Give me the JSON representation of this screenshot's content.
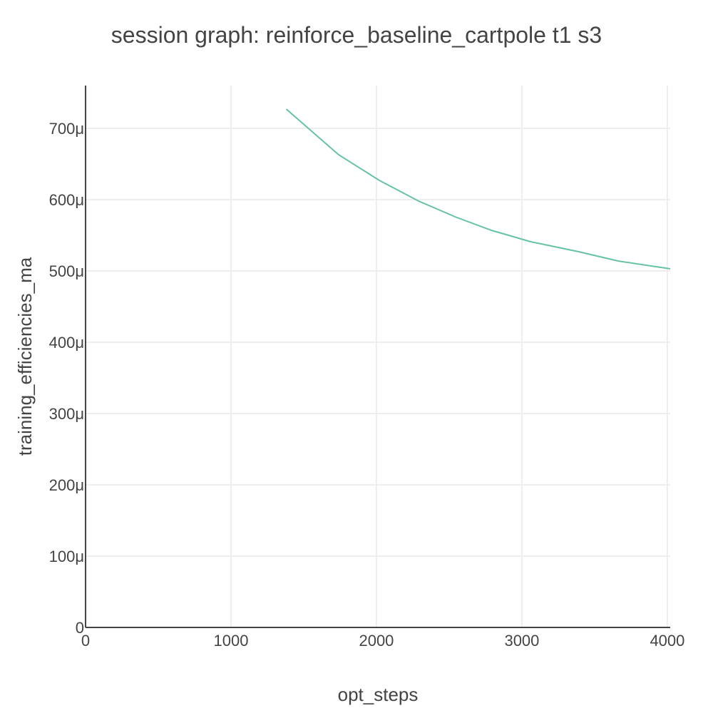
{
  "chart_data": {
    "type": "line",
    "title": "session graph: reinforce_baseline_cartpole t1 s3",
    "xlabel": "opt_steps",
    "ylabel": "training_efficiencies_ma",
    "xlim": [
      0,
      4020
    ],
    "ylim": [
      0,
      0.00076
    ],
    "x_ticks": [
      0,
      1000,
      2000,
      3000,
      4000
    ],
    "x_tick_labels": [
      "0",
      "1000",
      "2000",
      "3000",
      "4000"
    ],
    "y_ticks": [
      0,
      0.0001,
      0.0002,
      0.0003,
      0.0004,
      0.0005,
      0.0006,
      0.0007
    ],
    "y_tick_labels": [
      "0",
      "100μ",
      "200μ",
      "300μ",
      "400μ",
      "500μ",
      "600μ",
      "700μ"
    ],
    "grid": true,
    "legend": "none",
    "series": [
      {
        "color": "#66c2a5",
        "x": [
          1380,
          1740,
          2020,
          2290,
          2540,
          2790,
          3060,
          3390,
          3660,
          4020
        ],
        "y": [
          0.000727,
          0.000663,
          0.000627,
          0.000598,
          0.000576,
          0.000557,
          0.000541,
          0.000527,
          0.000514,
          0.000503
        ]
      }
    ]
  }
}
